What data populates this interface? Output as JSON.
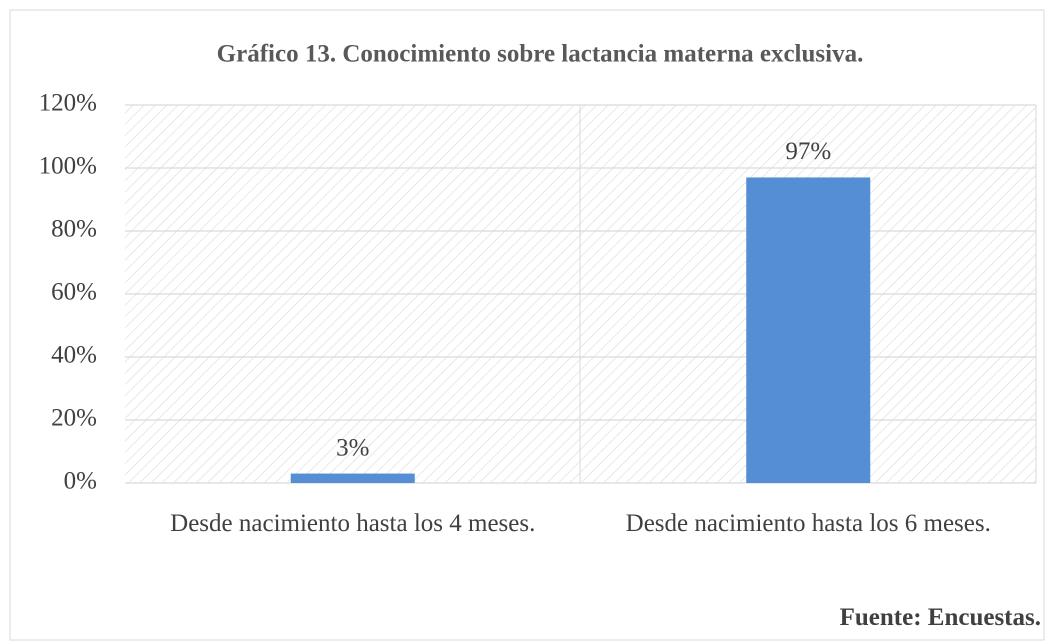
{
  "chart_data": {
    "type": "bar",
    "title": "Gráfico 13. Conocimiento sobre lactancia materna exclusiva.",
    "categories": [
      "Desde nacimiento hasta los 4 meses.",
      "Desde nacimiento hasta los 6 meses."
    ],
    "values": [
      3,
      97
    ],
    "value_labels": [
      "3%",
      "97%"
    ],
    "color": "#558ed5",
    "ylim": [
      0,
      120
    ],
    "yticks": [
      {
        "value": 0,
        "label": "0%"
      },
      {
        "value": 20,
        "label": "20%"
      },
      {
        "value": 40,
        "label": "40%"
      },
      {
        "value": 60,
        "label": "60%"
      },
      {
        "value": 80,
        "label": "80%"
      },
      {
        "value": 100,
        "label": "100%"
      },
      {
        "value": 120,
        "label": "120%"
      }
    ],
    "grid": true,
    "source": "Fuente: Encuestas."
  }
}
